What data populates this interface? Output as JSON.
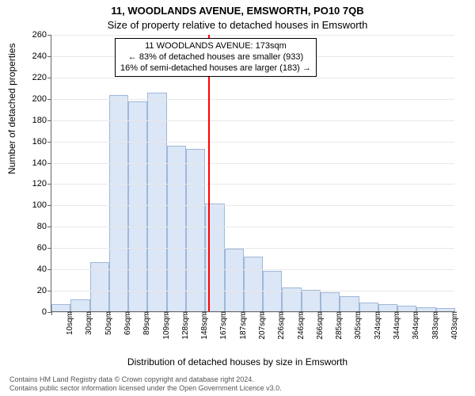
{
  "title": "11, WOODLANDS AVENUE, EMSWORTH, PO10 7QB",
  "subtitle": "Size of property relative to detached houses in Emsworth",
  "ylabel": "Number of detached properties",
  "xlabel": "Distribution of detached houses by size in Emsworth",
  "footer_l1": "Contains HM Land Registry data © Crown copyright and database right 2024.",
  "footer_l2": "Contains public sector information licensed under the Open Government Licence v3.0.",
  "chart": {
    "type": "histogram",
    "ymax": 260,
    "ytick_step": 20,
    "x_start": 10,
    "x_step": 20,
    "x_count": 21,
    "x_unit": "sqm",
    "bar_fill": "#dbe6f6",
    "bar_border": "#9fb7d9",
    "grid_color": "#e8e8e8",
    "axis_color": "#666666",
    "background": "#ffffff",
    "values": [
      7,
      11,
      46,
      203,
      197,
      205,
      155,
      152,
      101,
      59,
      51,
      38,
      22,
      20,
      18,
      14,
      8,
      7,
      5,
      4,
      3
    ],
    "xticks": [
      "10sqm",
      "30sqm",
      "50sqm",
      "69sqm",
      "89sqm",
      "109sqm",
      "128sqm",
      "148sqm",
      "167sqm",
      "187sqm",
      "207sqm",
      "226sqm",
      "246sqm",
      "266sqm",
      "285sqm",
      "305sqm",
      "324sqm",
      "344sqm",
      "364sqm",
      "383sqm",
      "403sqm"
    ],
    "marker_value": 173,
    "marker_color": "#ff0000",
    "annotation": {
      "l1": "11 WOODLANDS AVENUE: 173sqm",
      "l2": "← 83% of detached houses are smaller (933)",
      "l3": "16% of semi-detached houses are larger (183) →"
    },
    "title_fontsize": 13,
    "label_fontsize": 12,
    "tick_fontsize": 11
  }
}
